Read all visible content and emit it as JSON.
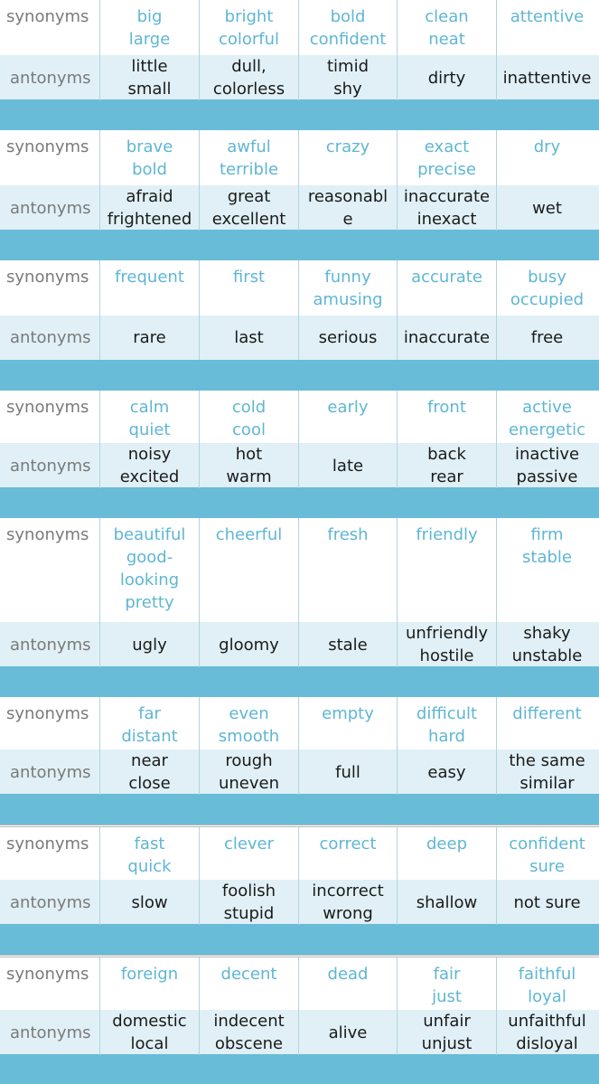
{
  "labels": {
    "synonyms": "synonyms",
    "antonyms": "antonyms"
  },
  "colors": {
    "synonym_text": "#5fb6d4",
    "label_text": "#7a7a7a",
    "antonym_row_bg": "#e0f0f6",
    "separator_bar": "#68bcd7"
  },
  "groups": [
    {
      "synonyms": [
        [
          "big",
          "large"
        ],
        [
          "bright",
          "colorful"
        ],
        [
          "bold",
          "confident"
        ],
        [
          "clean",
          "neat"
        ],
        [
          "attentive"
        ]
      ],
      "antonyms": [
        [
          "little",
          "small"
        ],
        [
          "dull,",
          "colorless"
        ],
        [
          "timid",
          "shy"
        ],
        [
          "dirty"
        ],
        [
          "inattentive"
        ]
      ]
    },
    {
      "synonyms": [
        [
          "brave",
          "bold"
        ],
        [
          "awful",
          "terrible"
        ],
        [
          "crazy"
        ],
        [
          "exact",
          "precise"
        ],
        [
          "dry"
        ]
      ],
      "antonyms": [
        [
          "afraid",
          "frightened"
        ],
        [
          "great",
          "excellent"
        ],
        [
          "reasonabl",
          "e"
        ],
        [
          "inaccurate",
          "inexact"
        ],
        [
          "wet"
        ]
      ]
    },
    {
      "synonyms": [
        [
          "frequent"
        ],
        [
          "first"
        ],
        [
          "funny",
          "amusing"
        ],
        [
          "accurate"
        ],
        [
          "busy",
          "occupied"
        ]
      ],
      "antonyms": [
        [
          "rare"
        ],
        [
          "last"
        ],
        [
          "serious"
        ],
        [
          "inaccurate"
        ],
        [
          "free"
        ]
      ]
    },
    {
      "synonyms": [
        [
          "calm",
          "quiet"
        ],
        [
          "cold",
          "cool"
        ],
        [
          "early"
        ],
        [
          "front"
        ],
        [
          "active",
          "energetic"
        ]
      ],
      "antonyms": [
        [
          "noisy",
          "excited"
        ],
        [
          "hot",
          "warm"
        ],
        [
          "late"
        ],
        [
          "back",
          "rear"
        ],
        [
          "inactive",
          "passive"
        ]
      ]
    },
    {
      "synonyms": [
        [
          "beautiful",
          "good-",
          "looking",
          "pretty"
        ],
        [
          "cheerful"
        ],
        [
          "fresh"
        ],
        [
          "friendly"
        ],
        [
          "firm",
          "stable"
        ]
      ],
      "antonyms": [
        [
          "ugly"
        ],
        [
          "gloomy"
        ],
        [
          "stale"
        ],
        [
          "unfriendly",
          "hostile"
        ],
        [
          "shaky",
          "unstable"
        ]
      ]
    },
    {
      "synonyms": [
        [
          "far",
          "distant"
        ],
        [
          "even",
          "smooth"
        ],
        [
          "empty"
        ],
        [
          "difficult",
          "hard"
        ],
        [
          "different"
        ]
      ],
      "antonyms": [
        [
          "near",
          "close"
        ],
        [
          "rough",
          "uneven"
        ],
        [
          "full"
        ],
        [
          "easy"
        ],
        [
          "the same",
          "similar"
        ]
      ]
    },
    {
      "synonyms": [
        [
          "fast",
          "quick"
        ],
        [
          "clever"
        ],
        [
          "correct"
        ],
        [
          "deep"
        ],
        [
          "confident",
          "sure"
        ]
      ],
      "antonyms": [
        [
          "slow"
        ],
        [
          "foolish",
          "stupid"
        ],
        [
          "incorrect",
          "wrong"
        ],
        [
          "shallow"
        ],
        [
          "not sure"
        ]
      ]
    },
    {
      "synonyms": [
        [
          "foreign"
        ],
        [
          "decent"
        ],
        [
          "dead"
        ],
        [
          "fair",
          "just"
        ],
        [
          "faithful",
          "loyal"
        ]
      ],
      "antonyms": [
        [
          "domestic",
          "local"
        ],
        [
          "indecent",
          "obscene"
        ],
        [
          "alive"
        ],
        [
          "unfair",
          "unjust"
        ],
        [
          "unfaithful",
          "disloyal"
        ]
      ]
    }
  ]
}
